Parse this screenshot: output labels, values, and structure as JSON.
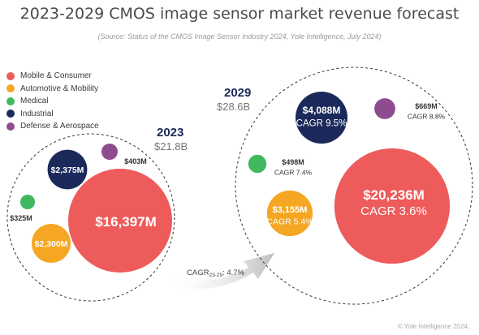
{
  "title": "2023-2029 CMOS image sensor market revenue forecast",
  "subtitle": "(Source: Status of the CMOS Image Sensor Industry 2024, Yole Intelligence, July 2024)",
  "copyright": "© Yole Intelligence 2024.",
  "colors": {
    "mobile": "#ee5b5b",
    "automotive": "#f5a623",
    "medical": "#3fb85f",
    "industrial": "#1b2a5a",
    "defense": "#8e4c8e"
  },
  "chart_data": {
    "type": "bubble",
    "unit": "$M",
    "legend_position": "top-left",
    "legend": [
      {
        "name": "Mobile & Consumer",
        "color": "#ee5b5b"
      },
      {
        "name": "Automotive & Mobility",
        "color": "#f5a623"
      },
      {
        "name": "Medical",
        "color": "#3fb85f"
      },
      {
        "name": "Industrial",
        "color": "#1b2a5a"
      },
      {
        "name": "Defense & Aerospace",
        "color": "#8e4c8e"
      }
    ],
    "years": [
      {
        "year": "2023",
        "total": "$21.8B",
        "segments": [
          {
            "name": "Mobile & Consumer",
            "value": 16397,
            "label": "$16,397M"
          },
          {
            "name": "Industrial",
            "value": 2375,
            "label": "$2,375M"
          },
          {
            "name": "Automotive & Mobility",
            "value": 2300,
            "label": "$2,300M"
          },
          {
            "name": "Defense & Aerospace",
            "value": 403,
            "label": "$403M"
          },
          {
            "name": "Medical",
            "value": 325,
            "label": "$325M"
          }
        ]
      },
      {
        "year": "2029",
        "total": "$28.6B",
        "segments": [
          {
            "name": "Mobile & Consumer",
            "value": 20236,
            "label": "$20,236M",
            "cagr": "CAGR 3.6%"
          },
          {
            "name": "Industrial",
            "value": 4088,
            "label": "$4,088M",
            "cagr": "CAGR 9.5%"
          },
          {
            "name": "Automotive & Mobility",
            "value": 3155,
            "label": "$3,155M",
            "cagr": "CAGR 5.4%"
          },
          {
            "name": "Defense & Aerospace",
            "value": 669,
            "label": "$669M",
            "cagr": "CAGR 8.8%"
          },
          {
            "name": "Medical",
            "value": 498,
            "label": "$498M",
            "cagr": "CAGR 7.4%"
          }
        ]
      }
    ],
    "overall_cagr": {
      "prefix": "CAGR",
      "subscript": "23-29",
      "value": ": 4.7%"
    }
  }
}
